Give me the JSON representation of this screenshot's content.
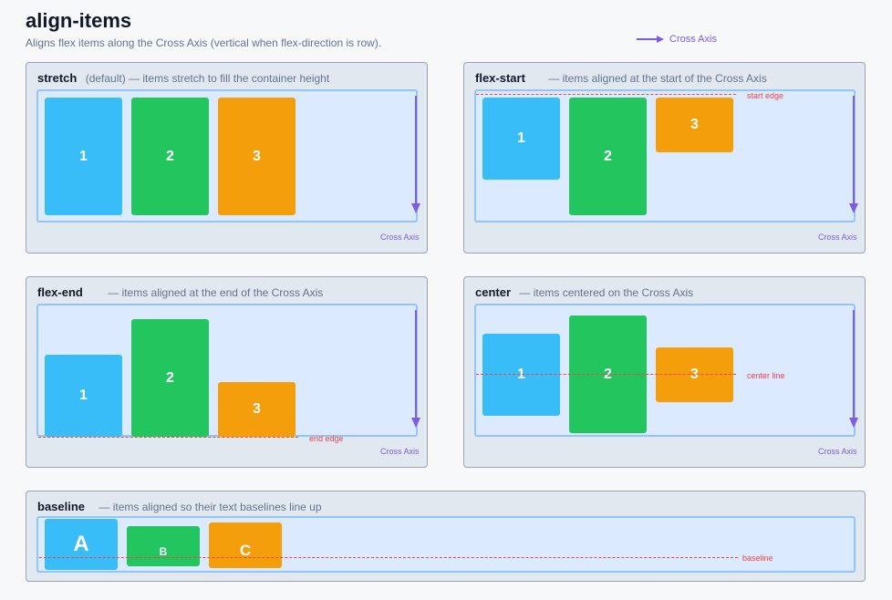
{
  "title": "align-items",
  "subtitle": "Aligns flex items along the Cross Axis (vertical when flex-direction is row).",
  "legend": {
    "label": "Cross Axis",
    "color": "#7c5ce0"
  },
  "colors": {
    "item1": "#38bdf8",
    "item2": "#22c55e",
    "item3": "#f59e0b",
    "guide": "#ef4444",
    "container_bg": "#dbeafe"
  },
  "panels": {
    "stretch": {
      "name": "stretch",
      "desc": "(default) — items stretch to fill the container height",
      "axis_label": "Cross Axis",
      "items": [
        "1",
        "2",
        "3"
      ]
    },
    "flex_start": {
      "name": "flex-start",
      "desc": "— items aligned at the start of the Cross Axis",
      "axis_label": "Cross Axis",
      "guide_label": "start edge",
      "items": [
        "1",
        "2",
        "3"
      ]
    },
    "flex_end": {
      "name": "flex-end",
      "desc": "— items aligned at the end of the Cross Axis",
      "axis_label": "Cross Axis",
      "guide_label": "end edge",
      "items": [
        "1",
        "2",
        "3"
      ]
    },
    "center": {
      "name": "center",
      "desc": "— items centered on the Cross Axis",
      "axis_label": "Cross Axis",
      "guide_label": "center line",
      "items": [
        "1",
        "2",
        "3"
      ]
    },
    "baseline": {
      "name": "baseline",
      "desc": "— items aligned so their text baselines line up",
      "guide_label": "baseline",
      "items": [
        "A",
        "B",
        "C"
      ]
    }
  }
}
